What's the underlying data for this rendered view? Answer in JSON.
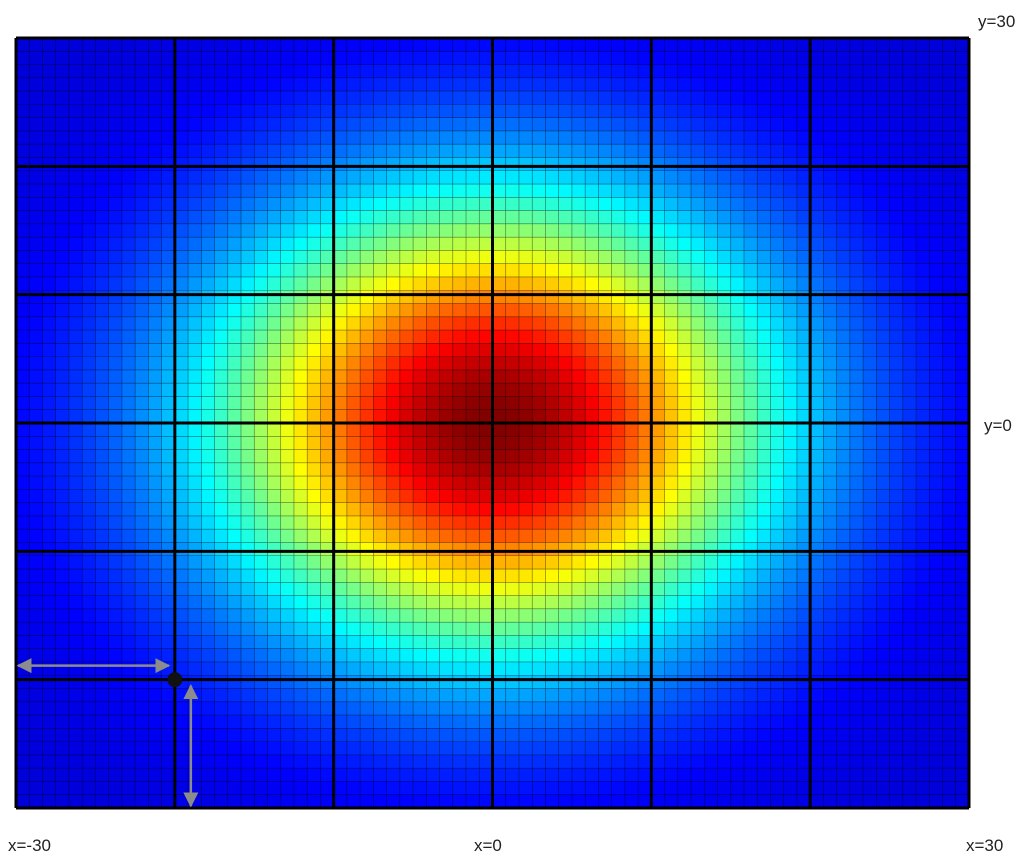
{
  "chart_data": {
    "type": "heatmap",
    "title": "",
    "x_range": [
      -30,
      30
    ],
    "y_range": [
      -30,
      30
    ],
    "fine_grid": {
      "cols": 72,
      "rows": 58
    },
    "coarse_grid": {
      "cols": 6,
      "rows": 6
    },
    "colormap": "jet",
    "colormap_stops": [
      "#00008f",
      "#0000ff",
      "#00ffff",
      "#ffff00",
      "#ff0000",
      "#800000"
    ],
    "peak": {
      "x": 0,
      "y": 0
    },
    "grid": true,
    "labels": {
      "x_min": "x=-30",
      "x_center": "x=0",
      "x_max": "x=30",
      "y_top": "y=30",
      "y_center": "y=0"
    },
    "annotation": {
      "marker_x": -20,
      "marker_y": -20,
      "marker_color": "#111111",
      "arrow_color": "#8c8c8c"
    }
  }
}
